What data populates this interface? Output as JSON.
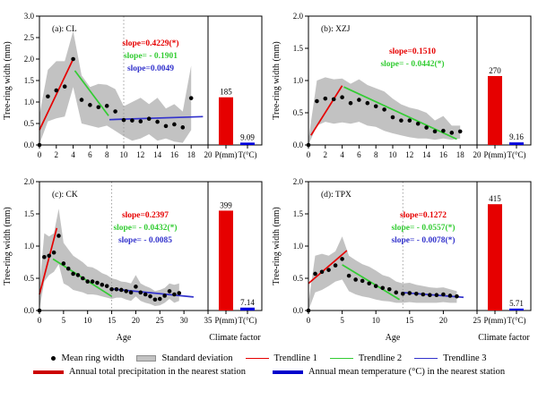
{
  "figure_title": "",
  "colors": {
    "red": "#e60000",
    "green": "#33cc33",
    "blue": "#3333cc",
    "precip_bar": "#e60000",
    "temp_bar": "#0000dd",
    "band": "#c2c2c2",
    "dotted": "#999999",
    "axis": "#000000"
  },
  "axis": {
    "ylabel": "Tree-ring width (mm)",
    "xlabel_age": "Age",
    "xlabel_climate": "Climate factor",
    "p_label": "P(mm)",
    "t_label": "T(°C)"
  },
  "chart_data": [
    {
      "id": "a",
      "type": "line",
      "title": "(a): CL",
      "site": "CL",
      "ylabel": "Tree-ring width (mm)",
      "ylim": [
        0.0,
        3.0
      ],
      "yticks": [
        0.0,
        0.5,
        1.0,
        1.5,
        2.0,
        2.5,
        3.0
      ],
      "xlim": [
        0,
        20
      ],
      "xticks": [
        0,
        2,
        4,
        6,
        8,
        10,
        12,
        14,
        16,
        18,
        20
      ],
      "xlabel": "",
      "ages": [
        0,
        1,
        2,
        3,
        4,
        5,
        6,
        7,
        8,
        9,
        10,
        11,
        12,
        13,
        14,
        15,
        16,
        17,
        18
      ],
      "mean": [
        0,
        1.13,
        1.27,
        1.36,
        2.0,
        1.05,
        0.93,
        0.88,
        0.91,
        0.78,
        0.58,
        0.57,
        0.55,
        0.61,
        0.54,
        0.44,
        0.48,
        0.41,
        1.09
      ],
      "band_upper": [
        0.7,
        1.75,
        1.95,
        1.95,
        2.65,
        1.62,
        1.35,
        1.42,
        1.4,
        1.3,
        0.9,
        1.0,
        1.1,
        0.95,
        1.1,
        0.85,
        0.95,
        0.78,
        1.85
      ],
      "band_lower": [
        0.02,
        0.55,
        0.62,
        0.66,
        1.35,
        0.5,
        0.45,
        0.4,
        0.45,
        0.33,
        0.2,
        0.1,
        0.15,
        0.25,
        0.1,
        0.15,
        0.08,
        0.05,
        0.35
      ],
      "dotted_x": 10,
      "trendlines": [
        {
          "label": "Trendline 1",
          "color": "#e60000",
          "x1": 0,
          "y1": 0.35,
          "x2": 4,
          "y2": 2.0
        },
        {
          "label": "Trendline 2",
          "color": "#33cc33",
          "x1": 4.2,
          "y1": 1.73,
          "x2": 8.2,
          "y2": 0.68
        },
        {
          "label": "Trendline 3",
          "color": "#3333cc",
          "x1": 8.3,
          "y1": 0.59,
          "x2": 19.4,
          "y2": 0.66
        }
      ],
      "slope_labels": [
        {
          "text": "slope=0.4229(*)",
          "color": "#e60000"
        },
        {
          "text": "slope= - 0.1901",
          "color": "#33cc33"
        },
        {
          "text": "slope=0.0049",
          "color": "#3333cc"
        }
      ],
      "slope_pos": [
        168,
        47
      ],
      "bars": [
        {
          "name": "annual-total-precipitation",
          "value": 185,
          "label": "185",
          "display_top": 1.11,
          "color": "#e60000",
          "x_label": "P(mm)"
        },
        {
          "name": "annual-mean-temperature",
          "value": 9.09,
          "label": "9.09",
          "display_top": 0.055,
          "color": "#0000dd",
          "x_label": "T(°C)"
        }
      ]
    },
    {
      "id": "b",
      "type": "line",
      "title": "(b): XZJ",
      "site": "XZJ",
      "ylabel": "Tree-ring width (mm)",
      "ylim": [
        0.0,
        2.0
      ],
      "yticks": [
        0.0,
        0.5,
        1.0,
        1.5,
        2.0
      ],
      "xlim": [
        0,
        20
      ],
      "xticks": [
        0,
        2,
        4,
        6,
        8,
        10,
        12,
        14,
        16,
        18,
        20
      ],
      "xlabel": "",
      "ages": [
        0,
        1,
        2,
        3,
        4,
        5,
        6,
        7,
        8,
        9,
        10,
        11,
        12,
        13,
        14,
        15,
        16,
        17,
        18
      ],
      "mean": [
        0,
        0.68,
        0.72,
        0.71,
        0.74,
        0.65,
        0.7,
        0.65,
        0.6,
        0.55,
        0.43,
        0.38,
        0.38,
        0.33,
        0.27,
        0.21,
        0.22,
        0.19,
        0.21
      ],
      "band_upper": [
        0.08,
        1.0,
        1.05,
        1.02,
        1.03,
        0.95,
        1.02,
        0.93,
        0.88,
        0.83,
        0.72,
        0.63,
        0.58,
        0.55,
        0.5,
        0.38,
        0.45,
        0.3,
        0.3
      ],
      "band_lower": [
        0.0,
        0.3,
        0.36,
        0.33,
        0.35,
        0.33,
        0.36,
        0.3,
        0.28,
        0.22,
        0.18,
        0.15,
        0.12,
        0.1,
        0.1,
        0.08,
        0.1,
        0.08,
        0.1
      ],
      "dotted_x": null,
      "trendlines": [
        {
          "label": "Trendline 1",
          "color": "#e60000",
          "x1": 0.3,
          "y1": 0.15,
          "x2": 4,
          "y2": 0.92
        },
        {
          "label": "Trendline 2",
          "color": "#33cc33",
          "x1": 4.2,
          "y1": 0.9,
          "x2": 17.6,
          "y2": 0.09
        }
      ],
      "slope_labels": [
        {
          "text": "slope=0.1510",
          "color": "#e60000"
        },
        {
          "text": "slope= - 0.0442(*)",
          "color": "#33cc33"
        }
      ],
      "slope_pos": [
        160,
        56
      ],
      "bars": [
        {
          "name": "annual-total-precipitation",
          "value": 270,
          "label": "270",
          "display_top": 1.07,
          "color": "#e60000",
          "x_label": "P(mm)"
        },
        {
          "name": "annual-mean-temperature",
          "value": 9.16,
          "label": "9.16",
          "display_top": 0.04,
          "color": "#0000dd",
          "x_label": "T(°C)"
        }
      ]
    },
    {
      "id": "c",
      "type": "line",
      "title": "(c): CK",
      "site": "CK",
      "ylabel": "Tree-ring width (mm)",
      "ylim": [
        0.0,
        2.0
      ],
      "yticks": [
        0.0,
        0.5,
        1.0,
        1.5,
        2.0
      ],
      "xlim": [
        0,
        35
      ],
      "xticks": [
        0,
        5,
        10,
        15,
        20,
        25,
        30,
        35
      ],
      "xlabel": "Age",
      "ages": [
        0,
        1,
        2,
        3,
        4,
        5,
        6,
        7,
        8,
        9,
        10,
        11,
        12,
        13,
        14,
        15,
        16,
        17,
        18,
        19,
        20,
        21,
        22,
        23,
        24,
        25,
        26,
        27,
        28,
        29
      ],
      "mean": [
        0,
        0.83,
        0.85,
        0.9,
        1.16,
        0.73,
        0.65,
        0.57,
        0.55,
        0.5,
        0.45,
        0.45,
        0.43,
        0.4,
        0.38,
        0.33,
        0.33,
        0.32,
        0.3,
        0.28,
        0.37,
        0.28,
        0.25,
        0.22,
        0.17,
        0.18,
        0.23,
        0.3,
        0.25,
        0.27
      ],
      "band_upper": [
        0.35,
        1.2,
        1.15,
        1.2,
        1.58,
        1.05,
        0.95,
        0.85,
        0.8,
        0.75,
        0.68,
        0.67,
        0.63,
        0.58,
        0.55,
        0.5,
        0.48,
        0.45,
        0.44,
        0.42,
        0.55,
        0.42,
        0.38,
        0.35,
        0.3,
        0.32,
        0.35,
        0.42,
        0.4,
        0.42
      ],
      "band_lower": [
        0.02,
        0.45,
        0.55,
        0.6,
        0.72,
        0.42,
        0.38,
        0.32,
        0.3,
        0.28,
        0.25,
        0.25,
        0.24,
        0.22,
        0.2,
        0.18,
        0.2,
        0.2,
        0.17,
        0.15,
        0.22,
        0.15,
        0.12,
        0.1,
        0.07,
        0.08,
        0.12,
        0.18,
        0.12,
        0.15
      ],
      "dotted_x": 15,
      "trendlines": [
        {
          "label": "Trendline 1",
          "color": "#e60000",
          "x1": 0,
          "y1": 0.25,
          "x2": 3.6,
          "y2": 1.28
        },
        {
          "label": "Trendline 2",
          "color": "#33cc33",
          "x1": 2.8,
          "y1": 0.8,
          "x2": 15,
          "y2": 0.22
        },
        {
          "label": "Trendline 3",
          "color": "#3333cc",
          "x1": 15,
          "y1": 0.335,
          "x2": 32,
          "y2": 0.21
        }
      ],
      "slope_labels": [
        {
          "text": "slope=0.2397",
          "color": "#e60000"
        },
        {
          "text": "slope= - 0.0432(*)",
          "color": "#33cc33"
        },
        {
          "text": "slope= - 0.0085",
          "color": "#3333cc"
        }
      ],
      "slope_pos": [
        162,
        54
      ],
      "bars": [
        {
          "name": "annual-total-precipitation",
          "value": 399,
          "label": "399",
          "display_top": 1.55,
          "color": "#e60000",
          "x_label": "P(mm)"
        },
        {
          "name": "annual-mean-temperature",
          "value": 7.14,
          "label": "7.14",
          "display_top": 0.045,
          "color": "#0000dd",
          "x_label": "T(°C)"
        }
      ]
    },
    {
      "id": "d",
      "type": "line",
      "title": "(d): TPX",
      "site": "TPX",
      "ylabel": "Tree-ring width (mm)",
      "ylim": [
        0.0,
        2.0
      ],
      "yticks": [
        0.0,
        0.5,
        1.0,
        1.5,
        2.0
      ],
      "xlim": [
        0,
        25
      ],
      "xticks": [
        0,
        5,
        10,
        15,
        20,
        25
      ],
      "xlabel": "Age",
      "ages": [
        0,
        1,
        2,
        3,
        4,
        5,
        6,
        7,
        8,
        9,
        10,
        11,
        12,
        13,
        14,
        15,
        16,
        17,
        18,
        19,
        20,
        21,
        22
      ],
      "mean": [
        0,
        0.57,
        0.6,
        0.63,
        0.7,
        0.8,
        0.54,
        0.48,
        0.46,
        0.42,
        0.38,
        0.35,
        0.33,
        0.28,
        0.26,
        0.27,
        0.26,
        0.25,
        0.24,
        0.24,
        0.25,
        0.23,
        0.22
      ],
      "band_upper": [
        0.12,
        0.85,
        0.88,
        0.85,
        0.92,
        1.15,
        0.85,
        0.78,
        0.72,
        0.68,
        0.62,
        0.55,
        0.52,
        0.45,
        0.42,
        0.43,
        0.4,
        0.38,
        0.36,
        0.35,
        0.36,
        0.33,
        0.3
      ],
      "band_lower": [
        0.0,
        0.28,
        0.32,
        0.38,
        0.45,
        0.48,
        0.3,
        0.25,
        0.22,
        0.2,
        0.17,
        0.15,
        0.14,
        0.12,
        0.12,
        0.13,
        0.12,
        0.12,
        0.12,
        0.12,
        0.13,
        0.12,
        0.12
      ],
      "dotted_x": 14,
      "trendlines": [
        {
          "label": "Trendline 1",
          "color": "#e60000",
          "x1": 0,
          "y1": 0.42,
          "x2": 5.7,
          "y2": 0.93
        },
        {
          "label": "Trendline 2",
          "color": "#33cc33",
          "x1": 5,
          "y1": 0.71,
          "x2": 13.5,
          "y2": 0.17
        },
        {
          "label": "Trendline 3",
          "color": "#3333cc",
          "x1": 13.8,
          "y1": 0.28,
          "x2": 23,
          "y2": 0.205
        }
      ],
      "slope_labels": [
        {
          "text": "slope=0.1272",
          "color": "#e60000"
        },
        {
          "text": "slope= - 0.0557(*)",
          "color": "#33cc33"
        },
        {
          "text": "slope= - 0.0078(*)",
          "color": "#3333cc"
        }
      ],
      "slope_pos": [
        172,
        54
      ],
      "bars": [
        {
          "name": "annual-total-precipitation",
          "value": 415,
          "label": "415",
          "display_top": 1.65,
          "color": "#e60000",
          "x_label": "P(mm)"
        },
        {
          "name": "annual-mean-temperature",
          "value": 5.71,
          "label": "5.71",
          "display_top": 0.03,
          "color": "#0000dd",
          "x_label": "T(°C)"
        }
      ]
    }
  ],
  "legend": {
    "row1": [
      {
        "marker": "dot",
        "color": "#000000",
        "label": "Mean ring width"
      },
      {
        "marker": "band",
        "color": "#c2c2c2",
        "label": "Standard deviation"
      },
      {
        "marker": "line-thin",
        "color": "#e60000",
        "label": "Trendline 1"
      },
      {
        "marker": "line-thin",
        "color": "#33cc33",
        "label": "Trendline 2"
      },
      {
        "marker": "line-thin",
        "color": "#3333cc",
        "label": "Trendline 3"
      }
    ],
    "row2": [
      {
        "marker": "line-thick",
        "color": "#cc0000",
        "label": "Annual total precipitation in the nearest station"
      },
      {
        "marker": "line-thick",
        "color": "#0000cc",
        "label": "Annual mean temperature (°C) in the nearest station"
      }
    ]
  }
}
